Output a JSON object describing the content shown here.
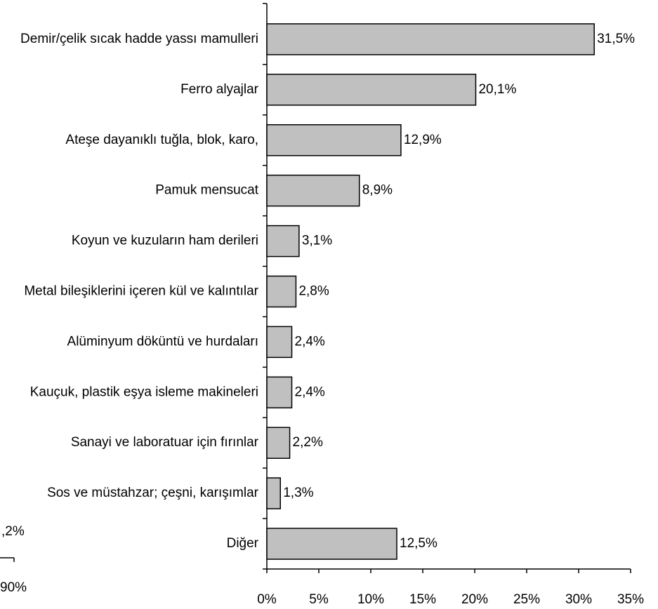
{
  "chart_data": {
    "type": "bar",
    "orientation": "horizontal",
    "categories": [
      "Demir/çelik sıcak hadde yassı mamulleri",
      "Ferro alyajlar",
      "Ateşe dayanıklı tuğla, blok, karo,",
      "Pamuk mensucat",
      "Koyun ve kuzuların ham derileri",
      "Metal bileşiklerini içeren kül ve kalıntılar",
      "Alüminyum döküntü ve hurdaları",
      "Kauçuk, plastik eşya isleme makineleri",
      "Sanayi ve laboratuar için fırınlar",
      "Sos ve müstahzar; çeşni, karışımlar",
      "Diğer"
    ],
    "values": [
      31.5,
      20.1,
      12.9,
      8.9,
      3.1,
      2.8,
      2.4,
      2.4,
      2.2,
      1.3,
      12.5
    ],
    "value_labels": [
      "31,5%",
      "20,1%",
      "12,9%",
      "8,9%",
      "3,1%",
      "2,8%",
      "2,4%",
      "2,4%",
      "2,2%",
      "1,3%",
      "12,5%"
    ],
    "color": "#c0c0c0",
    "xlim": [
      0,
      35
    ],
    "xticks": [
      {
        "value": 0,
        "label": "0%"
      },
      {
        "value": 5,
        "label": "5%"
      },
      {
        "value": 10,
        "label": "10%"
      },
      {
        "value": 15,
        "label": "15%"
      },
      {
        "value": 20,
        "label": "20%"
      },
      {
        "value": 25,
        "label": "25%"
      },
      {
        "value": 30,
        "label": "30%"
      },
      {
        "value": 35,
        "label": "35%"
      }
    ],
    "annotations": [
      ",2%",
      "90%"
    ]
  }
}
